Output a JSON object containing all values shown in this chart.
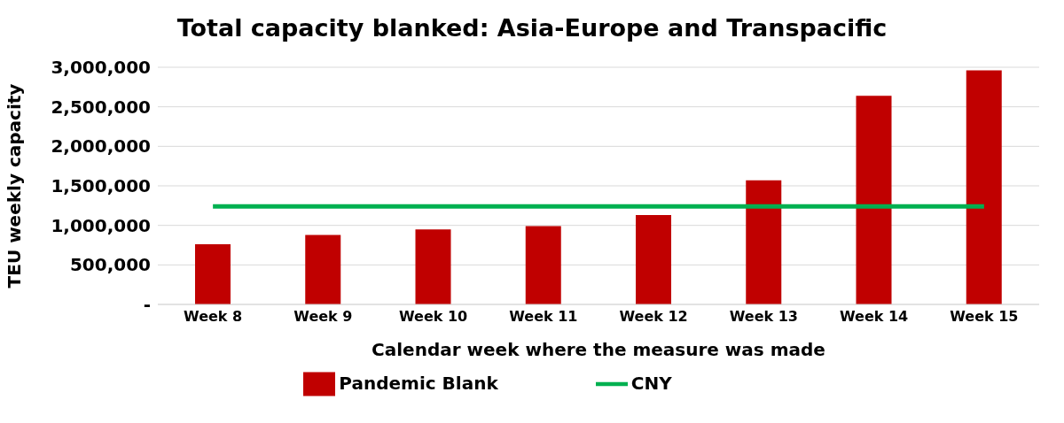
{
  "chart_data": {
    "type": "bar",
    "title": "Total capacity blanked: Asia-Europe and Transpacific",
    "xlabel": "Calendar week where the measure was made",
    "ylabel": "TEU weekly capacity",
    "categories": [
      "Week 8",
      "Week 9",
      "Week 10",
      "Week 11",
      "Week 12",
      "Week 13",
      "Week 14",
      "Week 15"
    ],
    "series": [
      {
        "name": "Pandemic Blank",
        "color": "#c00000",
        "values": [
          760000,
          880000,
          950000,
          990000,
          1130000,
          1570000,
          2640000,
          2960000
        ]
      },
      {
        "name": "CNY",
        "type": "line",
        "color": "#00b050",
        "values": [
          1240000,
          1240000,
          1240000,
          1240000,
          1240000,
          1240000,
          1240000,
          1240000
        ]
      }
    ],
    "ylim": [
      0,
      3000000
    ],
    "yticks": [
      {
        "value": 0,
        "label": "-"
      },
      {
        "value": 500000,
        "label": "500,000"
      },
      {
        "value": 1000000,
        "label": "1,000,000"
      },
      {
        "value": 1500000,
        "label": "1,500,000"
      },
      {
        "value": 2000000,
        "label": "2,000,000"
      },
      {
        "value": 2500000,
        "label": "2,500,000"
      },
      {
        "value": 3000000,
        "label": "3,000,000"
      }
    ],
    "grid": "y",
    "legend": "bottom",
    "marker": "none"
  }
}
